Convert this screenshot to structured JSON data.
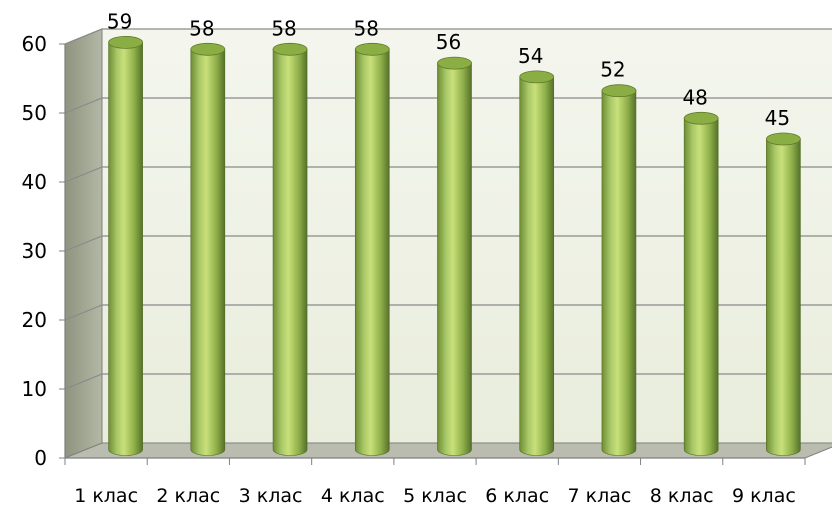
{
  "chart_data": {
    "type": "bar",
    "title": "",
    "xlabel": "",
    "ylabel": "",
    "categories": [
      "1 клас",
      "2 клас",
      "3 клас",
      "4 клас",
      "5 клас",
      "6 клас",
      "7 клас",
      "8 клас",
      "9 клас"
    ],
    "values": [
      59,
      58,
      58,
      58,
      56,
      54,
      52,
      48,
      45
    ],
    "data_labels": [
      "59",
      "58",
      "58",
      "58",
      "56",
      "54",
      "52",
      "48",
      "45"
    ],
    "ylim": [
      0,
      60
    ],
    "yticks": [
      "0",
      "10",
      "20",
      "30",
      "40",
      "50",
      "60"
    ],
    "grid": true,
    "legend": "none",
    "bar_style": "3d-cylinder",
    "colors": {
      "bar_light": "#c9e07a",
      "bar_mid": "#9bbb59",
      "bar_dark": "#5f7a2a",
      "bar_top": "#8aae43",
      "wall": "#f0f3e8",
      "side_wall": "#9aa08c",
      "floor": "#b9bcae",
      "grid": "#8a8a8a",
      "axis": "#808080"
    }
  }
}
